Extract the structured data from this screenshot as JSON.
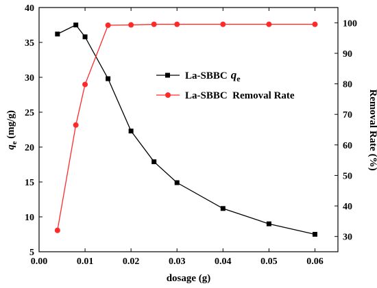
{
  "chart_data": {
    "type": "line",
    "x": [
      0.004,
      0.008,
      0.01,
      0.015,
      0.02,
      0.025,
      0.03,
      0.04,
      0.05,
      0.06
    ],
    "xlabel": "dosage (g)",
    "ylabel_left": {
      "italic": "q",
      "sub": "e",
      "rest": " (mg/g)"
    },
    "ylabel_right": "Removal Rate (%)",
    "xlim": [
      0.0,
      0.065
    ],
    "ylim_left": [
      5,
      40
    ],
    "ylim_right": [
      25,
      105
    ],
    "x_ticks": [
      0.0,
      0.01,
      0.02,
      0.03,
      0.04,
      0.05,
      0.06
    ],
    "x_tick_labels": [
      "0.00",
      "0.01",
      "0.02",
      "0.03",
      "0.04",
      "0.05",
      "0.06"
    ],
    "y_left_ticks": [
      5,
      10,
      15,
      20,
      25,
      30,
      35,
      40
    ],
    "y_right_ticks": [
      30,
      40,
      50,
      60,
      70,
      80,
      90,
      100
    ],
    "grid": false,
    "legend_position": "center-right",
    "series": [
      {
        "name": "La-SBBC",
        "name_suffix_italic": "q",
        "name_suffix_sub": "e",
        "axis": "left",
        "marker": "square",
        "color": "#000000",
        "values": [
          36.2,
          37.5,
          35.8,
          29.8,
          22.3,
          17.9,
          14.9,
          11.2,
          9.0,
          7.5
        ]
      },
      {
        "name": "La-SBBC  Removal Rate",
        "axis": "right",
        "marker": "circle",
        "color": "#ff2a2a",
        "values": [
          32.0,
          66.5,
          79.8,
          99.2,
          99.3,
          99.5,
          99.5,
          99.5,
          99.5,
          99.5
        ]
      }
    ]
  }
}
